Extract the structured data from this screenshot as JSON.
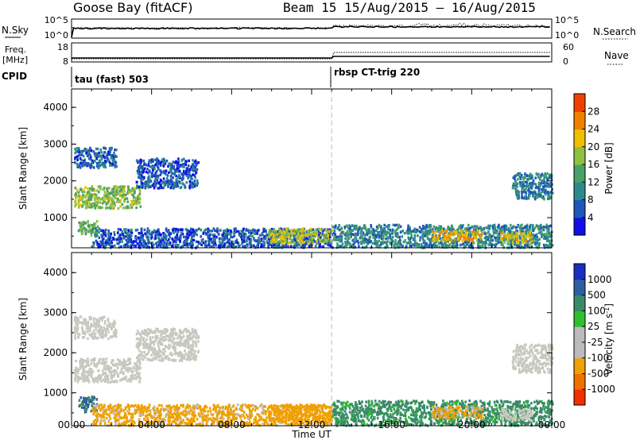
{
  "title_left": "Goose Bay (fitACF)",
  "title_right": "Beam 15  15/Aug/2015 – 16/Aug/2015",
  "header": {
    "left_labels": [
      "N.Sky",
      "Freq.",
      "[MHz]",
      "CPID"
    ],
    "right_labels": [
      "N.Search",
      "Nave"
    ],
    "nsky_ticks": [
      "10^5",
      "10^0"
    ],
    "freq_ticks": [
      "18",
      "8"
    ],
    "nave_ticks": [
      "60",
      "0"
    ],
    "cpid": [
      {
        "time_h": 0,
        "label": "tau (fast) 503"
      },
      {
        "time_h": 13,
        "label": "rbsp CT-trig 220"
      }
    ]
  },
  "colors": {
    "power": [
      "#1010e6",
      "#1f57b8",
      "#2e8a8a",
      "#4aa068",
      "#90c040",
      "#f0c000",
      "#f08000",
      "#f04000",
      "#e00000"
    ],
    "velocity": [
      "#e00000",
      "#f03000",
      "#f07000",
      "#f0a000",
      "#bbbbbb",
      "#bbbbbb",
      "#2fbf2f",
      "#3a8a6a",
      "#2e5ea0",
      "#1a2ec0"
    ],
    "ground_scatter": "#c8c8c0"
  },
  "chart_data": [
    {
      "type": "heatmap",
      "name": "power",
      "xlabel": "Time UT",
      "ylabel": "Slant Range [km]",
      "x_ticks": [
        "00:00",
        "04:00",
        "08:00",
        "12:00",
        "16:00",
        "20:00",
        "00:00"
      ],
      "y_ticks": [
        1000,
        2000,
        3000,
        4000
      ],
      "xlim": [
        0,
        24
      ],
      "ylim": [
        180,
        4500
      ],
      "colorbar_label": "Power [dB]",
      "colorbar_ticks": [
        "4",
        "8",
        "12",
        "16",
        "20",
        "24",
        "28"
      ],
      "colorbar_range": [
        0,
        30
      ],
      "features": [
        {
          "t0": 0.1,
          "t1": 3.4,
          "r0": 1250,
          "r1": 1850,
          "level": 14
        },
        {
          "t0": 0.1,
          "t1": 2.2,
          "r0": 2350,
          "r1": 2900,
          "level": 6
        },
        {
          "t0": 3.2,
          "t1": 6.3,
          "r0": 1800,
          "r1": 2600,
          "level": 5
        },
        {
          "t0": 0.3,
          "t1": 1.3,
          "r0": 500,
          "r1": 900,
          "level": 12
        },
        {
          "t0": 1.0,
          "t1": 13.0,
          "r0": 180,
          "r1": 700,
          "level": 5
        },
        {
          "t0": 9.8,
          "t1": 13.0,
          "r0": 300,
          "r1": 700,
          "level": 16
        },
        {
          "t0": 13.0,
          "t1": 24.0,
          "r0": 180,
          "r1": 800,
          "level": 8
        },
        {
          "t0": 18.0,
          "t1": 20.5,
          "r0": 350,
          "r1": 650,
          "level": 19
        },
        {
          "t0": 21.4,
          "t1": 23.0,
          "r0": 300,
          "r1": 600,
          "level": 17
        },
        {
          "t0": 22.0,
          "t1": 24.0,
          "r0": 1500,
          "r1": 2200,
          "level": 8
        }
      ]
    },
    {
      "type": "heatmap",
      "name": "velocity",
      "xlabel": "Time UT",
      "ylabel": "Slant Range [km]",
      "x_ticks": [
        "00:00",
        "04:00",
        "08:00",
        "12:00",
        "16:00",
        "20:00",
        "00:00"
      ],
      "y_ticks": [
        1000,
        2000,
        3000,
        4000
      ],
      "xlim": [
        0,
        24
      ],
      "ylim": [
        180,
        4500
      ],
      "colorbar_label": "Velocity [m s",
      "colorbar_superscript": "-1",
      "colorbar_unit_close": "]",
      "colorbar_ticks": [
        "1000",
        "500",
        "100",
        "25",
        "-25",
        "-100",
        "-500",
        "-1000"
      ],
      "features": [
        {
          "t0": 0.1,
          "t1": 3.4,
          "r0": 1250,
          "r1": 1850,
          "vel": "gs"
        },
        {
          "t0": 0.1,
          "t1": 2.2,
          "r0": 2350,
          "r1": 2900,
          "vel": "gs"
        },
        {
          "t0": 3.2,
          "t1": 6.3,
          "r0": 1800,
          "r1": 2600,
          "vel": "gs"
        },
        {
          "t0": 0.3,
          "t1": 1.3,
          "r0": 500,
          "r1": 900,
          "vel": 500
        },
        {
          "t0": 1.0,
          "t1": 13.0,
          "r0": 180,
          "r1": 700,
          "vel": -200
        },
        {
          "t0": 9.8,
          "t1": 13.0,
          "r0": 300,
          "r1": 700,
          "vel": -250
        },
        {
          "t0": 13.0,
          "t1": 24.0,
          "r0": 180,
          "r1": 800,
          "vel": 200
        },
        {
          "t0": 18.0,
          "t1": 20.5,
          "r0": 350,
          "r1": 650,
          "vel": -150
        },
        {
          "t0": 21.4,
          "t1": 23.0,
          "r0": 300,
          "r1": 600,
          "vel": "gs"
        },
        {
          "t0": 22.0,
          "t1": 24.0,
          "r0": 1500,
          "r1": 2200,
          "vel": "gs"
        }
      ]
    }
  ]
}
